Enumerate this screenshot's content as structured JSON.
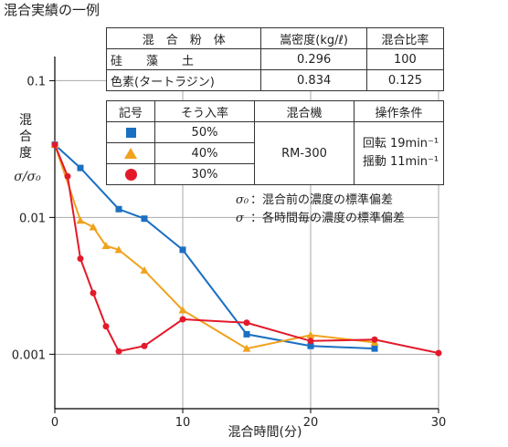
{
  "title": "混合実績の一例",
  "colors": {
    "series_50": "#1a6fc2",
    "series_40": "#f0a21e",
    "series_30": "#e3192a",
    "axis": "#000000",
    "grid": "#aaaaaa"
  },
  "materials_table": {
    "headers": [
      "混　合　粉　体",
      "嵩密度(kg/ℓ)",
      "混合比率"
    ],
    "rows": [
      [
        "硅　　藻　　土",
        "0.296",
        "100"
      ],
      [
        "色素(タートラジン)",
        "0.834",
        "0.125"
      ]
    ]
  },
  "conditions_table": {
    "headers": [
      "記号",
      "そう入率",
      "混合機",
      "操作条件"
    ],
    "rows": [
      {
        "marker": "blue-square",
        "rate": "50%"
      },
      {
        "marker": "orange-triangle",
        "rate": "40%"
      },
      {
        "marker": "red-circle",
        "rate": "30%"
      }
    ],
    "mixer": "RM-300",
    "conditions": [
      "回転 19min⁻¹",
      "揺動 11min⁻¹"
    ]
  },
  "notes": [
    {
      "symbol": "σ₀",
      "text": "：混合前の濃度の標準偏差"
    },
    {
      "symbol": "σ",
      "text": "：各時間毎の濃度の標準偏差"
    }
  ],
  "chart_data": {
    "type": "line",
    "title": "",
    "xlabel": "混合時間(分)",
    "ylabel": "混合度 σ/σ₀",
    "xlim": [
      0,
      30
    ],
    "ylim": [
      0.0004,
      0.15
    ],
    "yscale": "log",
    "xticks": [
      0,
      10,
      20,
      30
    ],
    "yticks": [
      {
        "value": 0.1,
        "label": "0.1"
      },
      {
        "value": 0.01,
        "label": "0.01"
      },
      {
        "value": 0.001,
        "label": "0.001"
      }
    ],
    "grid": true,
    "legend": "table",
    "series": [
      {
        "name": "50%",
        "marker": "square",
        "color": "#1a6fc2",
        "x": [
          0,
          2,
          5,
          7,
          10,
          15,
          20,
          25
        ],
        "y": [
          0.034,
          0.023,
          0.0115,
          0.0098,
          0.0058,
          0.0014,
          0.00115,
          0.0011
        ]
      },
      {
        "name": "40%",
        "marker": "triangle",
        "color": "#f0a21e",
        "x": [
          0,
          2,
          3,
          4,
          5,
          7,
          10,
          15,
          20,
          25
        ],
        "y": [
          0.034,
          0.0095,
          0.0085,
          0.0062,
          0.0058,
          0.0041,
          0.0021,
          0.0011,
          0.00138,
          0.00122
        ]
      },
      {
        "name": "30%",
        "marker": "circle",
        "color": "#e3192a",
        "x": [
          0,
          1,
          2,
          3,
          4,
          5,
          7,
          10,
          15,
          20,
          25,
          30
        ],
        "y": [
          0.034,
          0.02,
          0.005,
          0.0028,
          0.0016,
          0.00105,
          0.00115,
          0.0018,
          0.0017,
          0.00125,
          0.00128,
          0.00102
        ]
      }
    ]
  }
}
